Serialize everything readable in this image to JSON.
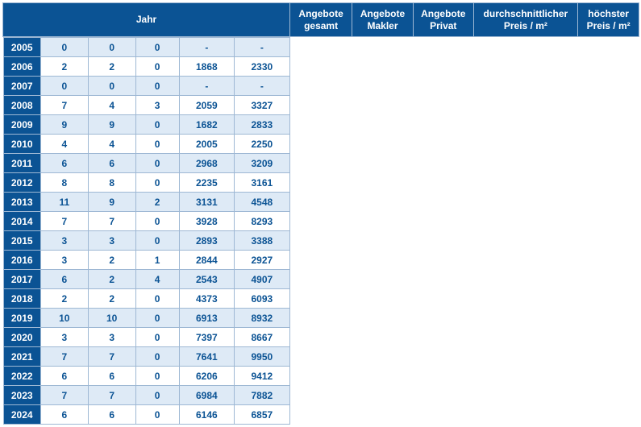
{
  "columns": [
    "Jahr",
    "Angebote gesamt",
    "Angebote Makler",
    "Angebote Privat",
    "durchschnittlicher Preis / m²",
    "höchster Preis / m²"
  ],
  "rows": [
    {
      "year": "2005",
      "total": "0",
      "makler": "0",
      "privat": "0",
      "avg": "-",
      "max": "-"
    },
    {
      "year": "2006",
      "total": "2",
      "makler": "2",
      "privat": "0",
      "avg": "1868",
      "max": "2330"
    },
    {
      "year": "2007",
      "total": "0",
      "makler": "0",
      "privat": "0",
      "avg": "-",
      "max": "-"
    },
    {
      "year": "2008",
      "total": "7",
      "makler": "4",
      "privat": "3",
      "avg": "2059",
      "max": "3327"
    },
    {
      "year": "2009",
      "total": "9",
      "makler": "9",
      "privat": "0",
      "avg": "1682",
      "max": "2833"
    },
    {
      "year": "2010",
      "total": "4",
      "makler": "4",
      "privat": "0",
      "avg": "2005",
      "max": "2250"
    },
    {
      "year": "2011",
      "total": "6",
      "makler": "6",
      "privat": "0",
      "avg": "2968",
      "max": "3209"
    },
    {
      "year": "2012",
      "total": "8",
      "makler": "8",
      "privat": "0",
      "avg": "2235",
      "max": "3161"
    },
    {
      "year": "2013",
      "total": "11",
      "makler": "9",
      "privat": "2",
      "avg": "3131",
      "max": "4548"
    },
    {
      "year": "2014",
      "total": "7",
      "makler": "7",
      "privat": "0",
      "avg": "3928",
      "max": "8293"
    },
    {
      "year": "2015",
      "total": "3",
      "makler": "3",
      "privat": "0",
      "avg": "2893",
      "max": "3388"
    },
    {
      "year": "2016",
      "total": "3",
      "makler": "2",
      "privat": "1",
      "avg": "2844",
      "max": "2927"
    },
    {
      "year": "2017",
      "total": "6",
      "makler": "2",
      "privat": "4",
      "avg": "2543",
      "max": "4907"
    },
    {
      "year": "2018",
      "total": "2",
      "makler": "2",
      "privat": "0",
      "avg": "4373",
      "max": "6093"
    },
    {
      "year": "2019",
      "total": "10",
      "makler": "10",
      "privat": "0",
      "avg": "6913",
      "max": "8932"
    },
    {
      "year": "2020",
      "total": "3",
      "makler": "3",
      "privat": "0",
      "avg": "7397",
      "max": "8667"
    },
    {
      "year": "2021",
      "total": "7",
      "makler": "7",
      "privat": "0",
      "avg": "7641",
      "max": "9950"
    },
    {
      "year": "2022",
      "total": "6",
      "makler": "6",
      "privat": "0",
      "avg": "6206",
      "max": "9412"
    },
    {
      "year": "2023",
      "total": "7",
      "makler": "7",
      "privat": "0",
      "avg": "6984",
      "max": "7882"
    },
    {
      "year": "2024",
      "total": "6",
      "makler": "6",
      "privat": "0",
      "avg": "6146",
      "max": "6857"
    }
  ],
  "style": {
    "header_bg": "#0b5394",
    "header_fg": "#ffffff",
    "row_even_bg": "#deeaf6",
    "row_odd_bg": "#ffffff",
    "text_color": "#0b5394",
    "border_color": "#9eb8d4"
  }
}
